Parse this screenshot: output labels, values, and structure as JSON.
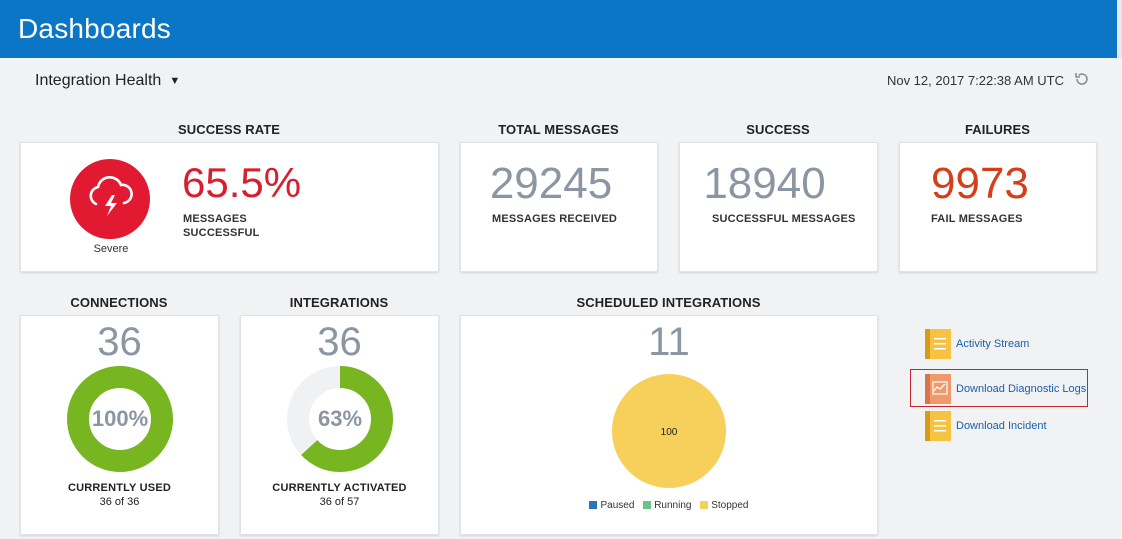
{
  "header": {
    "title": "Dashboards"
  },
  "subheader": {
    "view_label": "Integration Health",
    "timestamp": "Nov 12, 2017 7:22:38 AM UTC"
  },
  "success_rate": {
    "label": "SUCCESS RATE",
    "value": "65.5%",
    "caption_line1": "MESSAGES",
    "caption_line2": "SUCCESSFUL",
    "status": "Severe",
    "status_color": "#e21a31"
  },
  "total_messages": {
    "label": "TOTAL MESSAGES",
    "value": "29245",
    "caption": "MESSAGES RECEIVED"
  },
  "success": {
    "label": "SUCCESS",
    "value": "18940",
    "caption": "SUCCESSFUL MESSAGES"
  },
  "failures": {
    "label": "FAILURES",
    "value": "9973",
    "caption": "FAIL MESSAGES",
    "value_color": "#d43f1a"
  },
  "connections": {
    "label": "CONNECTIONS",
    "value": "36",
    "percent_text": "100%",
    "percent": 100,
    "caption": "CURRENTLY USED",
    "detail": "36 of 36"
  },
  "integrations": {
    "label": "INTEGRATIONS",
    "value": "36",
    "percent_text": "63%",
    "percent": 63,
    "caption": "CURRENTLY ACTIVATED",
    "detail": "36 of 57"
  },
  "scheduled": {
    "label": "SCHEDULED INTEGRATIONS",
    "value": "11",
    "pie_label": "100",
    "legend": [
      {
        "name": "Paused",
        "color": "#2f74b5"
      },
      {
        "name": "Running",
        "color": "#6cc387"
      },
      {
        "name": "Stopped",
        "color": "#f7d05c"
      }
    ]
  },
  "links": [
    {
      "label": "Activity Stream",
      "icon": "document-icon"
    },
    {
      "label": "Download Diagnostic Logs",
      "icon": "chart-document-icon"
    },
    {
      "label": "Download Incident",
      "icon": "document-icon"
    }
  ],
  "colors": {
    "accent": "#0b76c5",
    "donut_green": "#77b521",
    "donut_track": "#f0f1f3",
    "muted_number": "#8c96a3"
  }
}
